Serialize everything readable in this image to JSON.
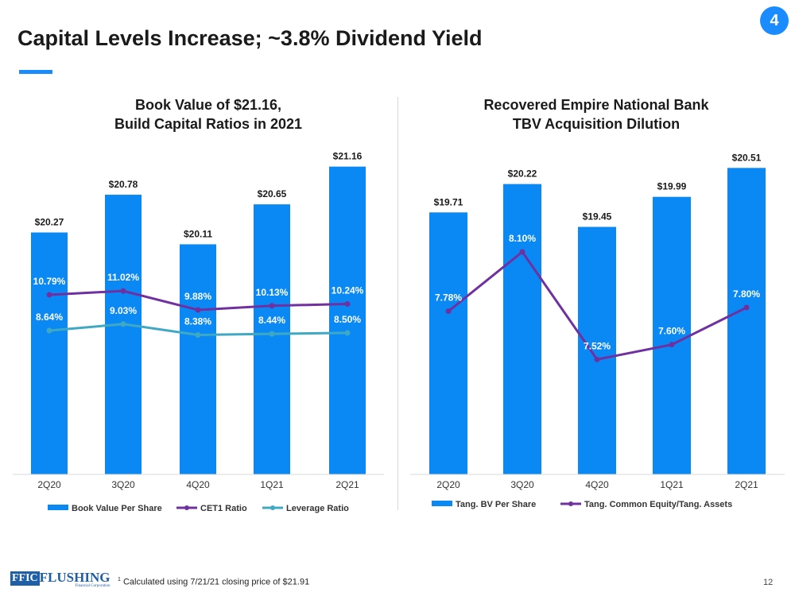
{
  "slide": {
    "title": "Capital Levels Increase; ~3.8% Dividend Yield",
    "badge": "4",
    "footnote_marker": "1",
    "footnote": "Calculated using 7/21/21 closing price of $21.91",
    "page_number": "12",
    "logo": {
      "mark": "FFIC",
      "name": "FLUSHING",
      "tagline": "Financial Corporation"
    },
    "colors": {
      "accent": "#1a8cff",
      "bar": "#0a89f5",
      "cet1": "#7030a0",
      "leverage": "#3fa9c4",
      "tce": "#7030a0"
    }
  },
  "chart_data": [
    {
      "type": "bar+line",
      "title_lines": [
        "Book Value of $21.16,",
        "Build Capital Ratios in 2021"
      ],
      "categories": [
        "2Q20",
        "3Q20",
        "4Q20",
        "1Q21",
        "2Q21"
      ],
      "bar_series": {
        "name": "Book Value Per Share",
        "values": [
          20.27,
          20.78,
          20.11,
          20.65,
          21.16
        ],
        "labels": [
          "$20.27",
          "$20.78",
          "$20.11",
          "$20.65",
          "$21.16"
        ],
        "ylim": [
          17,
          21.5
        ]
      },
      "line_series": [
        {
          "name": "CET1 Ratio",
          "values": [
            10.79,
            11.02,
            9.88,
            10.13,
            10.24
          ],
          "labels": [
            "10.79%",
            "11.02%",
            "9.88%",
            "10.13%",
            "10.24%"
          ],
          "color": "#7030a0"
        },
        {
          "name": "Leverage Ratio",
          "values": [
            8.64,
            9.03,
            8.38,
            8.44,
            8.5
          ],
          "labels": [
            "8.64%",
            "9.03%",
            "8.38%",
            "8.44%",
            "8.50%"
          ],
          "color": "#3fa9c4"
        }
      ],
      "line_ylim": [
        0,
        20
      ],
      "grid": false,
      "legend": "bottom"
    },
    {
      "type": "bar+line",
      "title_lines": [
        "Recovered Empire National Bank",
        "TBV Acquisition Dilution"
      ],
      "categories": [
        "2Q20",
        "3Q20",
        "4Q20",
        "1Q21",
        "2Q21"
      ],
      "bar_series": {
        "name": "Tang. BV Per Share",
        "values": [
          19.71,
          20.22,
          19.45,
          19.99,
          20.51
        ],
        "labels": [
          "$19.71",
          "$20.22",
          "$19.45",
          "$19.99",
          "$20.51"
        ],
        "ylim": [
          15,
          21
        ]
      },
      "line_series": [
        {
          "name": "Tang. Common Equity/Tang. Assets",
          "values": [
            7.78,
            8.1,
            7.52,
            7.6,
            7.8
          ],
          "labels": [
            "7.78%",
            "8.10%",
            "7.52%",
            "7.60%",
            "7.80%"
          ],
          "color": "#7030a0"
        }
      ],
      "line_ylim": [
        6.9,
        8.7
      ],
      "grid": false,
      "legend": "bottom"
    }
  ]
}
